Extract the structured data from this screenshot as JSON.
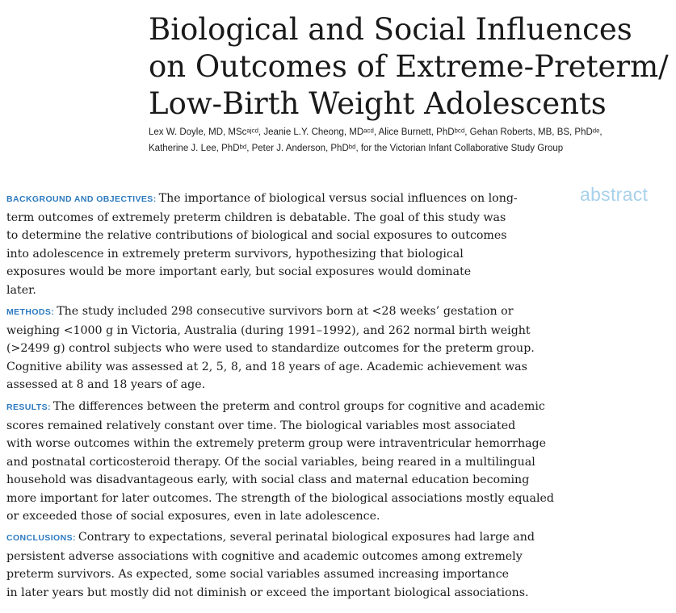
{
  "title_lines": [
    "Biological and Social Influences",
    "on Outcomes of Extreme-Preterm/",
    "Low-Birth Weight Adolescents"
  ],
  "authors_lines": [
    "Lex W. Doyle, MD, MScᵃʲᶜᵈ, Jeanie L.Y. Cheong, MDᵃᶜᵈ, Alice Burnett, PhDᵇᶜᵈ, Gehan Roberts, MB, BS, PhDᵈᵉ,",
    "Katherine J. Lee, PhDᵇᵈ, Peter J. Anderson, PhDᵇᵈ, for the Victorian Infant Collaborative Study Group"
  ],
  "abstract_tag": "abstract",
  "sections": {
    "background": {
      "label": "BACKGROUND AND OBJECTIVES:",
      "lines": [
        "The importance of biological versus social influences on long-",
        "term outcomes of extremely preterm children is debatable. The goal of this study was",
        "to determine the relative contributions of biological and social exposures to outcomes",
        "into adolescence in extremely preterm survivors, hypothesizing that biological",
        "exposures would be more important early, but social exposures would dominate",
        "later."
      ]
    },
    "methods": {
      "label": "METHODS:",
      "lines": [
        "The study included 298 consecutive survivors born at <28 weeks’ gestation or",
        "weighing <1000 g in Victoria, Australia (during 1991–1992), and 262 normal birth weight",
        "(>2499 g) control subjects who were used to standardize outcomes for the preterm group.",
        "Cognitive ability was assessed at 2, 5, 8, and 18 years of age. Academic achievement was",
        "assessed at 8 and 18 years of age."
      ]
    },
    "results": {
      "label": "RESULTS:",
      "lines": [
        "The differences between the preterm and control groups for cognitive and academic",
        "scores remained relatively constant over time. The biological variables most associated",
        "with worse outcomes within the extremely preterm group were intraventricular hemorrhage",
        "and postnatal corticosteroid therapy. Of the social variables, being reared in a multilingual",
        "household was disadvantageous early, with social class and maternal education becoming",
        "more important for later outcomes. The strength of the biological associations mostly equaled",
        "or exceeded those of social exposures, even in late adolescence."
      ]
    },
    "conclusions": {
      "label": "CONCLUSIONS:",
      "lines": [
        "Contrary to expectations, several perinatal biological exposures had large and",
        "persistent adverse associations with cognitive and academic outcomes among extremely",
        "preterm survivors. As expected, some social variables assumed increasing importance",
        "in later years but mostly did not diminish or exceed the important biological associations."
      ]
    }
  }
}
